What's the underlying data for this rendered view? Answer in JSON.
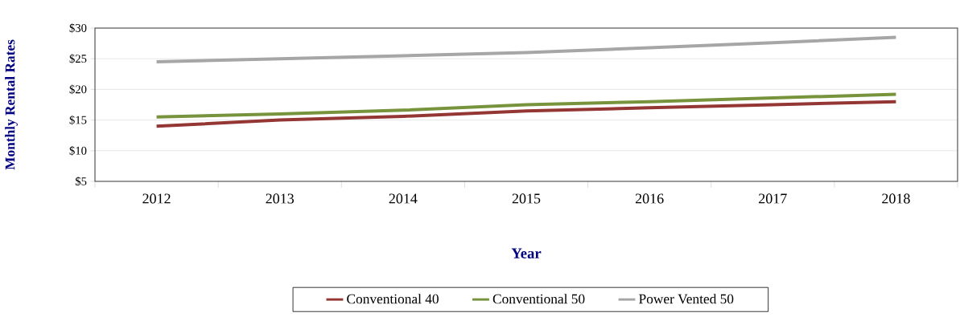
{
  "chart_data": {
    "type": "line",
    "xlabel": "Year",
    "ylabel": "Monthly Rental Rates",
    "categories": [
      "2012",
      "2013",
      "2014",
      "2015",
      "2016",
      "2017",
      "2018"
    ],
    "series": [
      {
        "name": "Conventional 40",
        "color": "#943634",
        "values": [
          14.0,
          15.0,
          15.6,
          16.5,
          17.0,
          17.5,
          18.0
        ]
      },
      {
        "name": "Conventional 50",
        "color": "#77933c",
        "values": [
          15.5,
          16.0,
          16.6,
          17.5,
          18.0,
          18.6,
          19.2
        ]
      },
      {
        "name": "Power Vented 50",
        "color": "#a6a6a6",
        "values": [
          24.5,
          25.0,
          25.5,
          26.0,
          26.8,
          27.6,
          28.5
        ]
      }
    ],
    "ylim": [
      5,
      30
    ],
    "yticks": [
      {
        "value": 5,
        "label": "$5"
      },
      {
        "value": 10,
        "label": "$10"
      },
      {
        "value": 15,
        "label": "$15"
      },
      {
        "value": 20,
        "label": "$20"
      },
      {
        "value": 25,
        "label": "$25"
      },
      {
        "value": 30,
        "label": "$30"
      }
    ],
    "grid": "y",
    "legend": "bottom",
    "line_style": "solid"
  }
}
